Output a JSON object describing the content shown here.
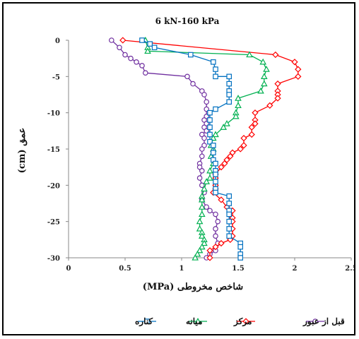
{
  "chart_data": {
    "type": "line",
    "title": "6 kN-160 kPa",
    "xlabel": "شاخص مخروطی (MPa)",
    "ylabel": "عمق (cm)",
    "xlim": [
      0,
      2.5
    ],
    "ylim": [
      -30,
      0
    ],
    "xticks": [
      0,
      0.5,
      1,
      1.5,
      2,
      2.5
    ],
    "yticks": [
      0,
      -5,
      -10,
      -15,
      -20,
      -25,
      -30
    ],
    "grid": false,
    "legend_position": "bottom",
    "series": [
      {
        "name": "قبل از عبور",
        "color": "#7030a0",
        "marker": "circle",
        "x": [
          0.38,
          0.45,
          0.5,
          0.55,
          0.6,
          0.65,
          0.68,
          1.05,
          1.1,
          1.18,
          1.2,
          1.22,
          1.22,
          1.22,
          1.2,
          1.22,
          1.2,
          1.22,
          1.18,
          1.2,
          1.2,
          1.18,
          1.18,
          1.16,
          1.16,
          1.18,
          1.16,
          1.18,
          1.2,
          1.18,
          1.22,
          1.25,
          1.3,
          1.32,
          1.3,
          1.3,
          1.32,
          1.3,
          1.25,
          1.22
        ],
        "y": [
          0,
          -1,
          -2,
          -2.5,
          -3,
          -3.5,
          -4.5,
          -5,
          -6,
          -7,
          -7.5,
          -8.5,
          -9.5,
          -10.5,
          -11,
          -11.5,
          -12,
          -12.5,
          -13,
          -13.5,
          -14.5,
          -15,
          -16,
          -17,
          -17.5,
          -18,
          -19,
          -20,
          -21,
          -22,
          -23,
          -23.5,
          -24,
          -25,
          -26,
          -27,
          -28,
          -29,
          -29.5,
          -30
        ]
      },
      {
        "name": "مرکز",
        "color": "#ff0000",
        "marker": "diamond",
        "x": [
          0.48,
          1.83,
          2.0,
          2.03,
          2.03,
          1.85,
          1.85,
          1.85,
          1.85,
          1.78,
          1.65,
          1.65,
          1.65,
          1.62,
          1.62,
          1.55,
          1.55,
          1.52,
          1.45,
          1.43,
          1.4,
          1.38,
          1.35,
          1.3,
          1.3,
          1.3,
          1.3,
          1.28,
          1.35,
          1.4,
          1.45,
          1.45,
          1.45,
          1.45,
          1.45,
          1.43,
          1.35,
          1.3,
          1.25,
          1.25
        ],
        "y": [
          0,
          -2,
          -3,
          -4,
          -5,
          -6,
          -7,
          -7.5,
          -8,
          -9,
          -10,
          -11,
          -11.5,
          -12,
          -13,
          -13.5,
          -14.5,
          -15,
          -15.5,
          -16,
          -16.5,
          -17,
          -17.5,
          -18.5,
          -19,
          -20,
          -20.5,
          -21,
          -22,
          -23,
          -23.5,
          -24.5,
          -25,
          -26,
          -27,
          -27.5,
          -28,
          -28.5,
          -29,
          -30
        ]
      },
      {
        "name": "میانه",
        "color": "#00b050",
        "marker": "triangle",
        "x": [
          0.68,
          0.7,
          0.7,
          1.6,
          1.72,
          1.75,
          1.73,
          1.73,
          1.7,
          1.5,
          1.5,
          1.48,
          1.48,
          1.4,
          1.37,
          1.3,
          1.28,
          1.26,
          1.28,
          1.26,
          1.28,
          1.25,
          1.25,
          1.22,
          1.2,
          1.18,
          1.18,
          1.18,
          1.18,
          1.16,
          1.16,
          1.18,
          1.18,
          1.2,
          1.2,
          1.18,
          1.16,
          1.14,
          1.12
        ],
        "y": [
          0,
          -1,
          -1.5,
          -2,
          -3,
          -4,
          -5,
          -6,
          -7,
          -8,
          -9,
          -10,
          -10.5,
          -11.5,
          -12,
          -13,
          -13.5,
          -14.5,
          -15,
          -16,
          -17,
          -18,
          -19,
          -19.5,
          -20.5,
          -21.5,
          -22,
          -23,
          -24,
          -25,
          -26,
          -26.5,
          -27,
          -27.5,
          -28,
          -28.5,
          -29,
          -29.5,
          -30
        ]
      },
      {
        "name": "کناره",
        "color": "#0070c0",
        "marker": "square",
        "x": [
          0.65,
          0.72,
          0.76,
          1.08,
          1.28,
          1.3,
          1.3,
          1.42,
          1.42,
          1.42,
          1.42,
          1.42,
          1.3,
          1.25,
          1.25,
          1.25,
          1.25,
          1.25,
          1.28,
          1.28,
          1.28,
          1.3,
          1.3,
          1.3,
          1.3,
          1.3,
          1.3,
          1.42,
          1.42,
          1.42,
          1.42,
          1.42,
          1.42,
          1.42,
          1.52,
          1.52,
          1.52,
          1.52
        ],
        "y": [
          0,
          -0.5,
          -1,
          -2,
          -3,
          -4,
          -5,
          -5,
          -6,
          -7,
          -7.5,
          -8.5,
          -9.5,
          -10,
          -11,
          -12,
          -13,
          -14,
          -14.5,
          -15.5,
          -16.5,
          -17,
          -18,
          -18.5,
          -19.5,
          -20.5,
          -21,
          -21.5,
          -22.5,
          -23.5,
          -24,
          -25,
          -26,
          -27,
          -28,
          -28.5,
          -29.5,
          -30
        ]
      }
    ]
  }
}
